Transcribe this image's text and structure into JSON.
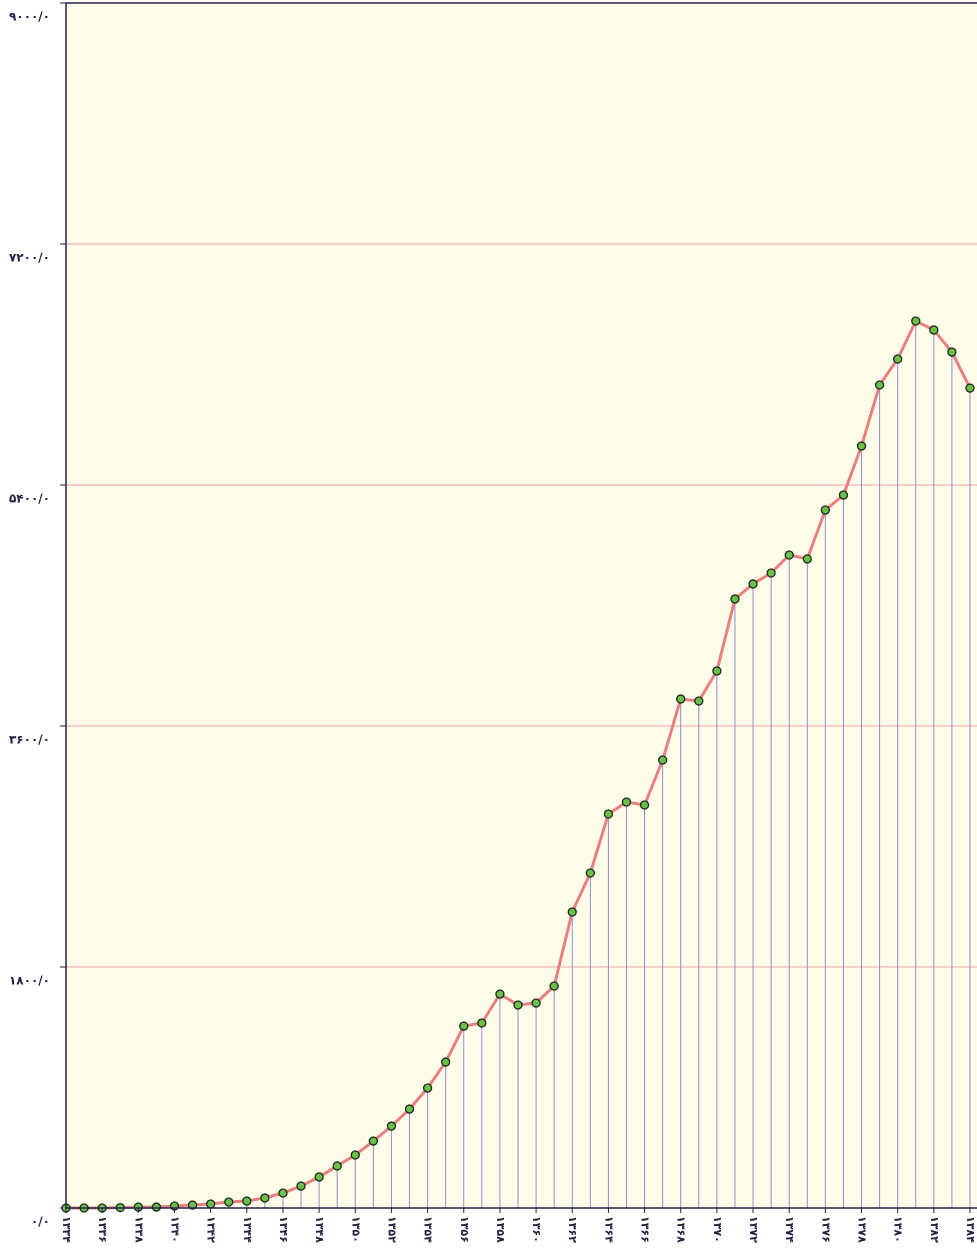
{
  "chart_data": {
    "type": "line",
    "categories": [
      "۱۳۳۴",
      null,
      "۱۳۳۶",
      null,
      "۱۳۳۸",
      null,
      "۱۳۴۰",
      null,
      "۱۳۴۲",
      null,
      "۱۳۴۴",
      null,
      "۱۳۴۶",
      null,
      "۱۳۴۸",
      null,
      "۱۳۵۰",
      null,
      "۱۳۵۲",
      null,
      "۱۳۵۴",
      null,
      "۱۳۵۶",
      null,
      "۱۳۵۸",
      null,
      "۱۳۶۰",
      null,
      "۱۳۶۲",
      null,
      "۱۳۶۴",
      null,
      "۱۳۶۶",
      null,
      "۱۳۶۸",
      null,
      "۱۳۷۰",
      null,
      "۱۳۷۲",
      null,
      "۱۳۷۴",
      null,
      "۱۳۷۶",
      null,
      "۱۳۷۸",
      null,
      "۱۳۸۰",
      null,
      "۱۳۸۲",
      null,
      "۱۳۸۴"
    ],
    "values": [
      0,
      0,
      0,
      3,
      7,
      7,
      15,
      22,
      30,
      45,
      52,
      75,
      112,
      164,
      232,
      314,
      396,
      500,
      612,
      739,
      896,
      1090,
      1359,
      1382,
      1598,
      1516,
      1531,
      1658,
      2211,
      2502,
      2943,
      3032,
      3010,
      3346,
      3802,
      3787,
      4011,
      4549,
      4661,
      4743,
      4877,
      4848,
      5213,
      5325,
      5691,
      6147,
      6341,
      6625,
      6558,
      6393,
      6124
    ],
    "color": "#e88080",
    "marker_color": "#6cc04a",
    "drop_line_color": "#8c8cd0",
    "grid_color": "#f0a0b0",
    "ylim": [
      0,
      9000
    ],
    "yticks": [
      {
        "value": 0,
        "label": "۰/۰"
      },
      {
        "value": 1800,
        "label": "۱۸۰۰/۰"
      },
      {
        "value": 3600,
        "label": "۳۶۰۰/۰"
      },
      {
        "value": 5400,
        "label": "۵۴۰۰/۰"
      },
      {
        "value": 7200,
        "label": "۷۲۰۰/۰"
      },
      {
        "value": 9000,
        "label": "۹۰۰۰/۰"
      }
    ],
    "grid": true
  }
}
